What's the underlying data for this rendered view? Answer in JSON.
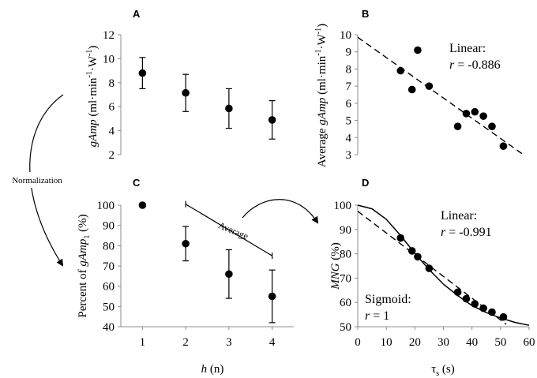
{
  "chart_data": [
    {
      "panel": "A",
      "type": "scatter",
      "title": "",
      "xlabel": "",
      "ylabel": {
        "pre": "gAmp",
        "mid": " (ml·min",
        "sup1": "-1",
        "mid2": "·W",
        "sup2": "-1",
        "post": ")"
      },
      "xlim": [
        0.5,
        4.5
      ],
      "ylim": [
        2,
        12
      ],
      "yticks": [
        "2",
        "4",
        "6",
        "8",
        "10",
        "12"
      ],
      "x": [
        1,
        2,
        3,
        4
      ],
      "y": [
        8.8,
        7.15,
        5.85,
        4.9
      ],
      "err": [
        1.3,
        1.55,
        1.65,
        1.6
      ]
    },
    {
      "panel": "B",
      "type": "scatter",
      "title": "",
      "xlabel": "",
      "ylabel": {
        "pre": "Average ",
        "it": "gAmp",
        "mid": " (ml·min",
        "sup1": "-1",
        "mid2": "·W",
        "sup2": "-1",
        "post": ")"
      },
      "xlim": [
        0,
        60
      ],
      "ylim": [
        3,
        10
      ],
      "yticks": [
        "3",
        "4",
        "5",
        "6",
        "7",
        "8",
        "9",
        "10"
      ],
      "x": [
        15,
        19,
        21,
        25,
        35,
        38,
        41,
        44,
        47,
        51
      ],
      "y": [
        7.9,
        6.8,
        9.1,
        7.0,
        4.65,
        5.4,
        5.5,
        5.25,
        4.65,
        3.5
      ],
      "fit_line": {
        "x": [
          0,
          58
        ],
        "y": [
          9.85,
          3.0
        ]
      },
      "annotation": {
        "title": "Linear:",
        "r_label": "r",
        "r_value": " = -0.886"
      }
    },
    {
      "panel": "C",
      "type": "scatter",
      "title": "",
      "xlabel": {
        "it": "h",
        "post": " (n)"
      },
      "ylabel": {
        "pre": "Percent of ",
        "it": "gAmp",
        "sub": "1",
        "post": " (%)"
      },
      "xlim": [
        0.5,
        4.5
      ],
      "ylim": [
        40,
        100
      ],
      "xticks": [
        "1",
        "2",
        "3",
        "4"
      ],
      "yticks": [
        "40",
        "50",
        "60",
        "70",
        "80",
        "90",
        "100"
      ],
      "x": [
        1,
        2,
        3,
        4
      ],
      "y": [
        100,
        81,
        66,
        55
      ],
      "err": [
        0,
        8.5,
        12,
        13
      ],
      "average_bracket": {
        "label": "Average",
        "from": [
          2,
          100.5
        ],
        "to": [
          4,
          75
        ]
      }
    },
    {
      "panel": "D",
      "type": "scatter",
      "title": "",
      "xlabel": {
        "greek": "τ",
        "sub": "s",
        "post": " (s)"
      },
      "ylabel": {
        "it": "MNG",
        "post": " (%)"
      },
      "xlim": [
        0,
        60
      ],
      "ylim": [
        50,
        100
      ],
      "xticks": [
        "0",
        "10",
        "20",
        "30",
        "40",
        "50",
        "60"
      ],
      "yticks": [
        "50",
        "60",
        "70",
        "80",
        "90",
        "100"
      ],
      "x": [
        15,
        19,
        21,
        25,
        35,
        38,
        41,
        44,
        47,
        51
      ],
      "y": [
        86.5,
        81.2,
        78.8,
        74,
        64.2,
        61.5,
        59.4,
        57.6,
        56,
        54
      ],
      "fit_line": {
        "x": [
          0,
          52
        ],
        "y": [
          97.5,
          51
        ]
      },
      "sigmoid": {
        "x": [
          0,
          5,
          10,
          15,
          20,
          25,
          30,
          35,
          40,
          45,
          50,
          55,
          60
        ],
        "y": [
          100,
          98.5,
          94.2,
          87.5,
          80.2,
          73.5,
          67.5,
          62.8,
          58.7,
          55.8,
          53.6,
          51.8,
          50.6
        ]
      },
      "annotation": {
        "title": "Linear:",
        "r_label": "r",
        "r_value": " = -0.991",
        "sig_title": "Sigmoid:",
        "sig_r_label": "r",
        "sig_r_value": " = 1"
      }
    }
  ],
  "panel_letters": {
    "A": "A",
    "B": "B",
    "C": "C",
    "D": "D"
  },
  "normalization_label": "Normalization",
  "colors": {
    "ink": "#000000",
    "axis": "#8c8c8c",
    "bg": "#ffffff"
  }
}
